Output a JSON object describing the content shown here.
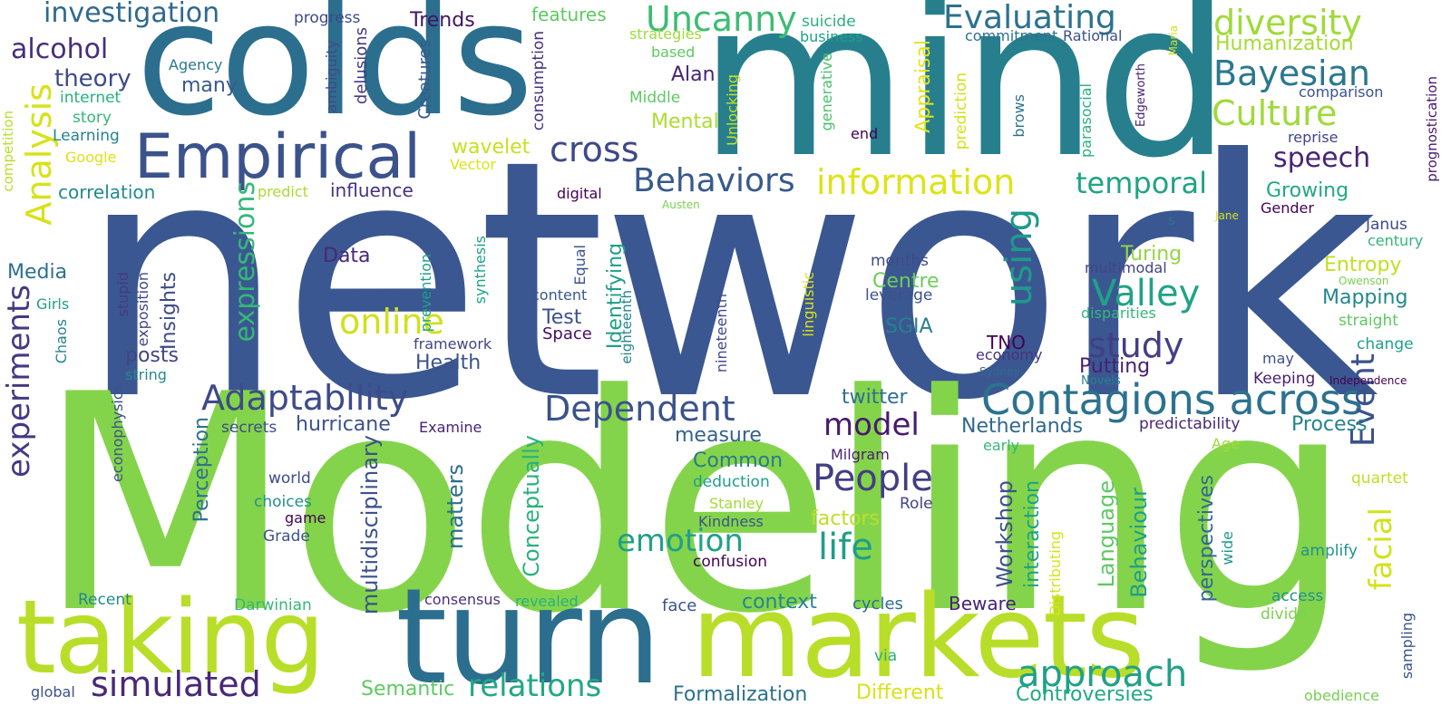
{
  "words": [
    {
      "text": "network",
      "color": "#3b5791"
    },
    {
      "text": "Modeling",
      "color": "#84d44b"
    },
    {
      "text": "mind",
      "color": "#277f8e"
    },
    {
      "text": "colds",
      "color": "#2c6e8e"
    },
    {
      "text": "turn",
      "color": "#2c6e8e"
    },
    {
      "text": "markets",
      "color": "#b8de29"
    },
    {
      "text": "taking",
      "color": "#b8de29"
    },
    {
      "text": "Empirical",
      "color": "#3b528b"
    },
    {
      "text": "Contagions across",
      "color": "#2c728e"
    },
    {
      "text": "Uncanny",
      "color": "#3dbc74"
    },
    {
      "text": "Evaluating",
      "color": "#2c728e"
    },
    {
      "text": "diversity",
      "color": "#9fda3a"
    },
    {
      "text": "Bayesian",
      "color": "#2a788e"
    },
    {
      "text": "Culture",
      "color": "#9fda3a"
    },
    {
      "text": "information",
      "color": "#dde318"
    },
    {
      "text": "Behaviors",
      "color": "#38598c"
    },
    {
      "text": "cross",
      "color": "#3e4989"
    },
    {
      "text": "Adaptability",
      "color": "#3e4a89"
    },
    {
      "text": "Dependent",
      "color": "#3b528b"
    },
    {
      "text": "People",
      "color": "#433e85"
    },
    {
      "text": "approach",
      "color": "#1fa187"
    },
    {
      "text": "simulated",
      "color": "#482878"
    },
    {
      "text": "relations",
      "color": "#22a884"
    },
    {
      "text": "investigation",
      "color": "#31688e"
    },
    {
      "text": "alcohol",
      "color": "#472d7b"
    },
    {
      "text": "theory",
      "color": "#3e4a89"
    },
    {
      "text": "temporal",
      "color": "#20a386"
    },
    {
      "text": "speech",
      "color": "#482475"
    },
    {
      "text": "Valley",
      "color": "#20a386"
    },
    {
      "text": "study",
      "color": "#433e85"
    },
    {
      "text": "online",
      "color": "#d0e11c"
    },
    {
      "text": "life",
      "color": "#1f9e89"
    },
    {
      "text": "emotion",
      "color": "#1fa088"
    },
    {
      "text": "model",
      "color": "#481a6c"
    },
    {
      "text": "facial",
      "color": "#d2e21b"
    },
    {
      "text": "Event",
      "color": "#3b528b"
    },
    {
      "text": "using",
      "color": "#1f9a8a"
    },
    {
      "text": "Analysis",
      "color": "#d8e219"
    },
    {
      "text": "experiments",
      "color": "#443983"
    },
    {
      "text": "expressions",
      "color": "#35b779"
    },
    {
      "text": "Humanization",
      "color": "#a5db36"
    },
    {
      "text": "Growing",
      "color": "#22a884"
    },
    {
      "text": "Entropy",
      "color": "#c2df23"
    },
    {
      "text": "Mapping",
      "color": "#24868e"
    },
    {
      "text": "Process",
      "color": "#26828e"
    },
    {
      "text": "Formalization",
      "color": "#2d708e"
    },
    {
      "text": "Controversies",
      "color": "#22a884"
    },
    {
      "text": "Different",
      "color": "#d8e219"
    },
    {
      "text": "Semantic",
      "color": "#5ec962"
    },
    {
      "text": "context",
      "color": "#25848e"
    },
    {
      "text": "factors",
      "color": "#bddf26"
    },
    {
      "text": "Netherlands",
      "color": "#31688e"
    },
    {
      "text": "twitter",
      "color": "#2e6f8e"
    },
    {
      "text": "Language",
      "color": "#5ec962"
    },
    {
      "text": "Behaviour",
      "color": "#1f9e89"
    },
    {
      "text": "Workshop",
      "color": "#3b528b"
    },
    {
      "text": "Conceptually",
      "color": "#2ab07f"
    },
    {
      "text": "multidisciplinary",
      "color": "#3b528b"
    },
    {
      "text": "matters",
      "color": "#2d708e"
    },
    {
      "text": "interaction",
      "color": "#1fa187"
    },
    {
      "text": "perspectives",
      "color": "#31688e"
    },
    {
      "text": "hurricane",
      "color": "#3b528b"
    },
    {
      "text": "Mental",
      "color": "#addc30"
    },
    {
      "text": "Alan",
      "color": "#482475"
    },
    {
      "text": "wavelet",
      "color": "#c8e020"
    },
    {
      "text": "correlation",
      "color": "#23898e"
    },
    {
      "text": "influence",
      "color": "#46327e"
    },
    {
      "text": "Media",
      "color": "#2d708e"
    },
    {
      "text": "Data",
      "color": "#482878"
    },
    {
      "text": "Insights",
      "color": "#3e4a89"
    },
    {
      "text": "posts",
      "color": "#414487"
    },
    {
      "text": "Health",
      "color": "#3b528b"
    },
    {
      "text": "Test",
      "color": "#3b528b"
    },
    {
      "text": "Centre",
      "color": "#6ccd5a"
    },
    {
      "text": "SGIA",
      "color": "#26828e"
    },
    {
      "text": "Turing",
      "color": "#93d741"
    },
    {
      "text": "Putting",
      "color": "#481f70"
    },
    {
      "text": "TNO",
      "color": "#440154"
    },
    {
      "text": "Identifying",
      "color": "#1f9e89"
    },
    {
      "text": "Perception",
      "color": "#2c728e"
    },
    {
      "text": "measure",
      "color": "#33638d"
    },
    {
      "text": "Common",
      "color": "#2a788e"
    },
    {
      "text": "Space",
      "color": "#471063"
    },
    {
      "text": "Trends",
      "color": "#3f1661"
    },
    {
      "text": "features",
      "color": "#5ec962"
    },
    {
      "text": "many",
      "color": "#38588c"
    },
    {
      "text": "Agency",
      "color": "#2a788e"
    },
    {
      "text": "internet",
      "color": "#29af7f"
    },
    {
      "text": "story",
      "color": "#35b779"
    },
    {
      "text": "Learning",
      "color": "#26828e"
    },
    {
      "text": "Google",
      "color": "#dde318"
    },
    {
      "text": "progress",
      "color": "#3e4a89"
    },
    {
      "text": "Creatures",
      "color": "#38598c"
    },
    {
      "text": "delusions",
      "color": "#443983"
    },
    {
      "text": "ambiguity",
      "color": "#3f4889"
    },
    {
      "text": "strategies",
      "color": "#9fda3a"
    },
    {
      "text": "based",
      "color": "#5ec962"
    },
    {
      "text": "Middle",
      "color": "#5ec962"
    },
    {
      "text": "consumption",
      "color": "#46337f"
    },
    {
      "text": "suicide",
      "color": "#2ab07f"
    },
    {
      "text": "business",
      "color": "#1fa188"
    },
    {
      "text": "generative",
      "color": "#4ac16d"
    },
    {
      "text": "Appraisal",
      "color": "#e5e419"
    },
    {
      "text": "Unlocking",
      "color": "#c5e021"
    },
    {
      "text": "end",
      "color": "#440154"
    },
    {
      "text": "prediction",
      "color": "#d2e21b"
    },
    {
      "text": "brows",
      "color": "#2c728e"
    },
    {
      "text": "commitment",
      "color": "#2d718e"
    },
    {
      "text": "Rational",
      "color": "#3b528b"
    },
    {
      "text": "parasocial",
      "color": "#2ab07f"
    },
    {
      "text": "Edgeworth",
      "color": "#482475"
    },
    {
      "text": "Maria",
      "color": "#d2e21b"
    },
    {
      "text": "comparison",
      "color": "#3a538b"
    },
    {
      "text": "reprise",
      "color": "#404688"
    },
    {
      "text": "prognostication",
      "color": "#481a6c"
    },
    {
      "text": "Gender",
      "color": "#440154"
    },
    {
      "text": "Janus",
      "color": "#3e4a89"
    },
    {
      "text": "century",
      "color": "#31b57b"
    },
    {
      "text": "Owenson",
      "color": "#7ad151"
    },
    {
      "text": "straight",
      "color": "#5ec962"
    },
    {
      "text": "change",
      "color": "#1fa088"
    },
    {
      "text": "Keeping",
      "color": "#481d6f"
    },
    {
      "text": "Independence",
      "color": "#440154"
    },
    {
      "text": "may",
      "color": "#3b528b"
    },
    {
      "text": "Jane",
      "color": "#d8e219"
    },
    {
      "text": "s",
      "color": "#2c728e"
    },
    {
      "text": "multimodal",
      "color": "#414487"
    },
    {
      "text": "disparities",
      "color": "#35b779"
    },
    {
      "text": "leverage",
      "color": "#3b528b"
    },
    {
      "text": "months",
      "color": "#3e4a89"
    },
    {
      "text": "linguistic",
      "color": "#d8e219"
    },
    {
      "text": "economy",
      "color": "#46337f"
    },
    {
      "text": "Sydney",
      "color": "#31688e"
    },
    {
      "text": "Novels",
      "color": "#26828e"
    },
    {
      "text": "predictability",
      "color": "#482878"
    },
    {
      "text": "early",
      "color": "#35b779"
    },
    {
      "text": "Age",
      "color": "#a0da39"
    },
    {
      "text": "quartet",
      "color": "#bddf26"
    },
    {
      "text": "wide",
      "color": "#1f9a8a"
    },
    {
      "text": "amplify",
      "color": "#21918c"
    },
    {
      "text": "access",
      "color": "#21918c"
    },
    {
      "text": "divide",
      "color": "#7ad151"
    },
    {
      "text": "sampling",
      "color": "#3b528b"
    },
    {
      "text": "obedience",
      "color": "#75d054"
    },
    {
      "text": "Distributing",
      "color": "#d8e219"
    },
    {
      "text": "Beware",
      "color": "#482173"
    },
    {
      "text": "cycles",
      "color": "#2d708e"
    },
    {
      "text": "face",
      "color": "#3b528b"
    },
    {
      "text": "via",
      "color": "#29af7f"
    },
    {
      "text": "Role",
      "color": "#414487"
    },
    {
      "text": "Milgram",
      "color": "#481f70"
    },
    {
      "text": "Kindness",
      "color": "#3b528b"
    },
    {
      "text": "confusion",
      "color": "#440154"
    },
    {
      "text": "Stanley",
      "color": "#a5db36"
    },
    {
      "text": "deduction",
      "color": "#1f9e89"
    },
    {
      "text": "Examine",
      "color": "#482475"
    },
    {
      "text": "secrets",
      "color": "#3d4d8a"
    },
    {
      "text": "world",
      "color": "#3e4a89"
    },
    {
      "text": "choices",
      "color": "#21918c"
    },
    {
      "text": "game",
      "color": "#440154"
    },
    {
      "text": "Grade",
      "color": "#3b528b"
    },
    {
      "text": "econophysics",
      "color": "#3b528b"
    },
    {
      "text": "exposition",
      "color": "#404588"
    },
    {
      "text": "stupid",
      "color": "#443983"
    },
    {
      "text": "string",
      "color": "#23898e"
    },
    {
      "text": "Chaos",
      "color": "#26828e"
    },
    {
      "text": "Girls",
      "color": "#1f9e89"
    },
    {
      "text": "predict",
      "color": "#a8db34"
    },
    {
      "text": "Vector",
      "color": "#dde318"
    },
    {
      "text": "digital",
      "color": "#440154"
    },
    {
      "text": "Austen",
      "color": "#7ad151"
    },
    {
      "text": "prevention",
      "color": "#1f9e89"
    },
    {
      "text": "synthesis",
      "color": "#1fa187"
    },
    {
      "text": "Equal",
      "color": "#3b528b"
    },
    {
      "text": "content",
      "color": "#38588c"
    },
    {
      "text": "framework",
      "color": "#414487"
    },
    {
      "text": "eighteenth",
      "color": "#25848e"
    },
    {
      "text": "nineteenth",
      "color": "#3e4a89"
    },
    {
      "text": "competition",
      "color": "#b8de29"
    },
    {
      "text": "Recent",
      "color": "#23898e"
    },
    {
      "text": "Darwinian",
      "color": "#35b779"
    },
    {
      "text": "consensus",
      "color": "#46337f"
    },
    {
      "text": "revealed",
      "color": "#2ab07f"
    },
    {
      "text": "global",
      "color": "#3b528b"
    }
  ]
}
